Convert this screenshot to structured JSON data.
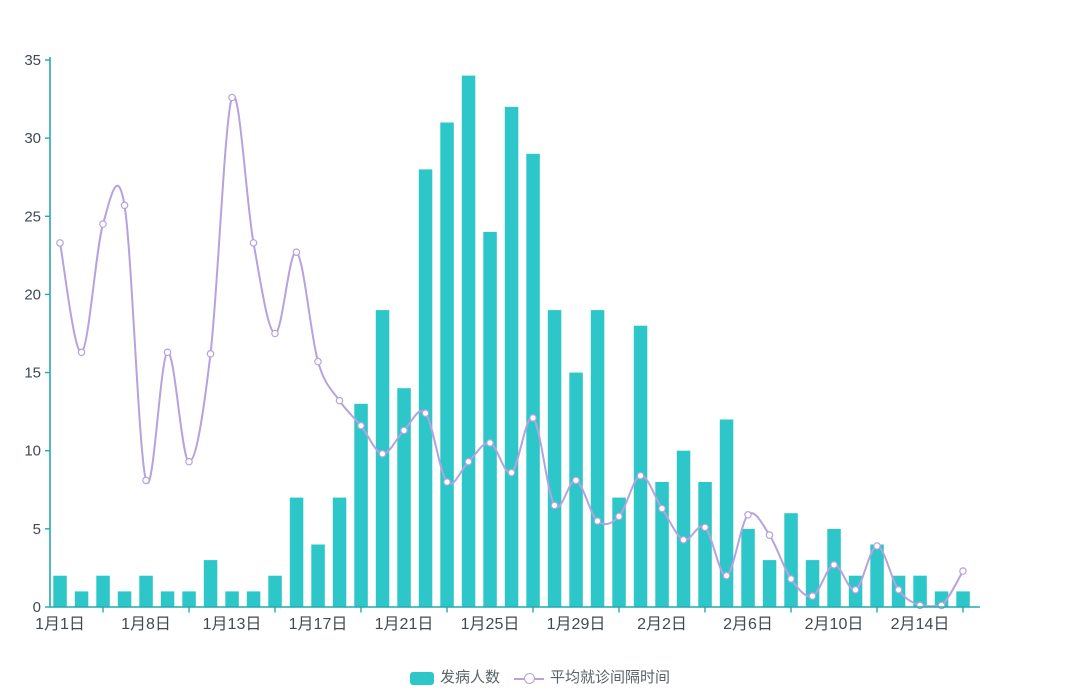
{
  "chart_data": {
    "type": "bar+line",
    "title": "",
    "xlabel": "",
    "ylabel": "",
    "ylim": [
      0,
      35
    ],
    "grid": false,
    "num_categories": 43,
    "y_axis": {
      "ticks": [
        0,
        5,
        10,
        15,
        20,
        25,
        30,
        35
      ],
      "interval": 5
    },
    "x_axis": {
      "visible_tick_labels": [
        "1月1日",
        "1月8日",
        "1月13日",
        "1月17日",
        "1月21日",
        "1月25日",
        "1月29日",
        "2月2日",
        "2月6日",
        "2月10日",
        "2月14日"
      ],
      "label_category_indices": [
        0,
        4,
        8,
        12,
        16,
        20,
        24,
        28,
        32,
        36,
        40
      ]
    },
    "series": [
      {
        "name": "发病人数",
        "type": "bar",
        "color": "#2ec7c9",
        "values": [
          2,
          1,
          2,
          1,
          2,
          1,
          1,
          3,
          1,
          1,
          2,
          7,
          4,
          7,
          13,
          19,
          14,
          28,
          31,
          34,
          24,
          32,
          29,
          19,
          15,
          19,
          7,
          18,
          8,
          10,
          8,
          12,
          5,
          3,
          6,
          3,
          5,
          2,
          4,
          2,
          2,
          1,
          1
        ]
      },
      {
        "name": "平均就诊间隔时间",
        "type": "line",
        "smooth": true,
        "color": "#b6a2de",
        "marker": "hollow-circle",
        "values": [
          23.3,
          16.3,
          24.5,
          25.7,
          8.1,
          16.3,
          9.3,
          16.2,
          32.6,
          23.3,
          17.5,
          22.7,
          15.7,
          13.2,
          11.6,
          9.8,
          11.3,
          12.4,
          8.0,
          9.3,
          10.5,
          8.6,
          12.1,
          6.5,
          8.1,
          5.5,
          5.8,
          8.4,
          6.3,
          4.3,
          5.1,
          2.0,
          5.9,
          4.6,
          1.8,
          0.7,
          2.7,
          1.1,
          3.9,
          1.1,
          0.1,
          0.1,
          2.3
        ]
      }
    ],
    "legend": {
      "position": "bottom",
      "items": [
        "发病人数",
        "平均就诊间隔时间"
      ]
    },
    "colors": {
      "bar": "#2ec7c9",
      "line": "#b6a2de",
      "marker_fill": "#ffffff",
      "axis_line": "#24a9ad",
      "axis_label_text": "#404a50",
      "background": "#ffffff"
    }
  }
}
